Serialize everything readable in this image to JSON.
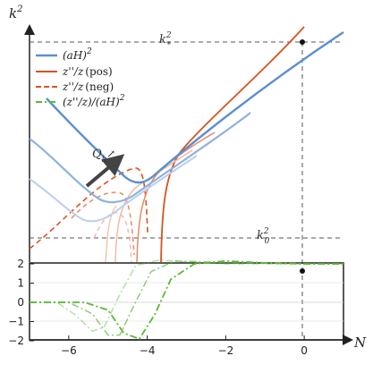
{
  "chart_data": [
    {
      "type": "line",
      "panel": "top",
      "ylabel": "k",
      "ylabel_sup": "2",
      "yscale": "log",
      "xlim": [
        -7,
        1
      ],
      "colors": {
        "aH": "#5b8fd0",
        "pos": "#d9531e",
        "neg": "#d9531e",
        "ratio": "#5cb837"
      },
      "series": [
        {
          "name_base": "(aH)",
          "name_sup": "2",
          "style": "solid",
          "color": "#5b8fd0"
        },
        {
          "name_base": "z''/z",
          "name_paren": "(pos)",
          "style": "solid",
          "color": "#d9531e"
        },
        {
          "name_base": "z''/z",
          "name_paren": "(neg)",
          "style": "dashed",
          "color": "#d9531e"
        },
        {
          "name_base": "(z''/z)/(aH)",
          "name_sup": "2",
          "style": "dashdot",
          "color": "#5cb837"
        }
      ],
      "curves_aH": [
        {
          "opacity": 1.0,
          "x": [
            -6.2,
            -5.4,
            -5.0,
            -4.7,
            -4.5,
            -4.3,
            -4.1,
            -3.5,
            -2.5,
            -1.5,
            0,
            0.3
          ],
          "y": [
            120,
            265,
            296,
            308,
            310,
            308,
            298,
            252,
            182,
            112,
            12,
            -6
          ]
        },
        {
          "opacity": 0.75,
          "x": [
            -7.0,
            -6.0,
            -5.6,
            -5.35,
            -5.0,
            -4.6,
            -4.0,
            -3.0,
            -2.0,
            -1.0,
            0,
            0.3
          ]
        },
        {
          "opacity": 0.5,
          "x": [
            -7.0,
            -6.3,
            -5.95,
            -5.7,
            -5.4,
            -5.0,
            -4.0,
            -3.0,
            -2.0,
            -1.0,
            0,
            0.3
          ]
        }
      ],
      "reference_lines": [
        {
          "label_base": "k",
          "label_sub": "*",
          "label_sup": "2",
          "style": "dashed"
        },
        {
          "label_base": "k",
          "label_sub": "0",
          "label_sup": "2",
          "style": "dashed"
        }
      ],
      "annotation": {
        "text_base": "Q",
        "text_sub": "k",
        "arrow": "↗"
      },
      "marker": {
        "x": 0
      }
    },
    {
      "type": "line",
      "panel": "bottom",
      "xlabel": "N",
      "x_ticks": [
        -6,
        -4,
        -2,
        0
      ],
      "y_ticks": [
        2,
        1,
        0,
        -1,
        -2
      ],
      "ylim": [
        -2.6,
        2.6
      ],
      "series_ratio": [
        {
          "opacity": 1.0,
          "x": [
            -7,
            -5.6,
            -5.0,
            -4.6,
            -4.2,
            -3.8,
            -3.4,
            -2.8,
            -2.0,
            -1.0,
            0,
            1
          ],
          "y": [
            0,
            0,
            -0.4,
            -1.6,
            -1.9,
            -0.6,
            1.2,
            2.0,
            2.15,
            2.05,
            2.0,
            2.0
          ]
        },
        {
          "opacity": 0.7,
          "x": [
            -7,
            -6.0,
            -5.4,
            -5.0,
            -4.7,
            -4.3,
            -3.9,
            -3.3,
            -2.5,
            -1.5,
            0,
            1
          ],
          "y": [
            0,
            0,
            -0.6,
            -1.7,
            -1.7,
            0.0,
            1.6,
            2.15,
            2.1,
            2.05,
            2.0,
            2.0
          ]
        },
        {
          "opacity": 0.45,
          "x": [
            -7,
            -6.3,
            -5.8,
            -5.4,
            -5.1,
            -4.7,
            -4.3,
            -3.7,
            -3.0,
            -2.0,
            0,
            1
          ],
          "y": [
            0,
            0,
            -0.7,
            -1.5,
            -1.3,
            0.4,
            1.9,
            2.2,
            2.1,
            2.0,
            2.0,
            2.0
          ]
        }
      ],
      "marker": {
        "x": 0,
        "y": 2.0
      }
    }
  ]
}
